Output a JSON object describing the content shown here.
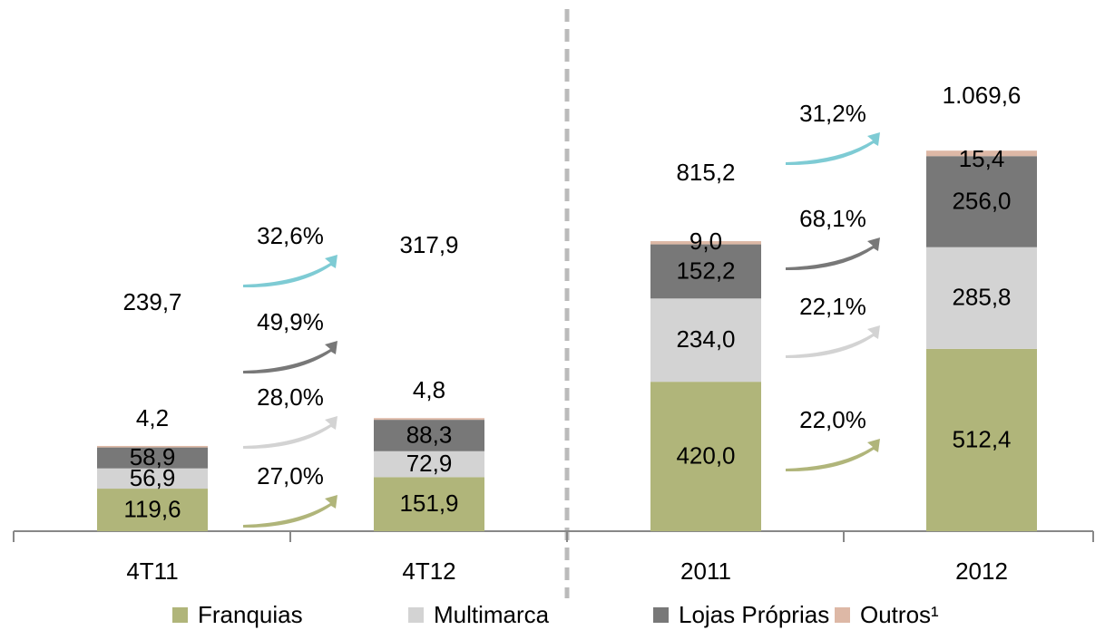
{
  "chart_data": {
    "type": "stacked_bar",
    "categories": [
      "4T11",
      "4T12",
      "2011",
      "2012"
    ],
    "series": [
      {
        "name": "Franquias",
        "color": "#b0b57a",
        "values": [
          119.6,
          151.9,
          420.0,
          512.4
        ],
        "value_labels": [
          "119,6",
          "151,9",
          "420,0",
          "512,4"
        ]
      },
      {
        "name": "Multimarca",
        "color": "#d3d3d3",
        "values": [
          56.9,
          72.9,
          234.0,
          285.8
        ],
        "value_labels": [
          "56,9",
          "72,9",
          "234,0",
          "285,8"
        ]
      },
      {
        "name": "Lojas Próprias",
        "color": "#787878",
        "values": [
          58.9,
          88.3,
          152.2,
          256.0
        ],
        "value_labels": [
          "58,9",
          "88,3",
          "152,2",
          "256,0"
        ]
      },
      {
        "name": "Outros¹",
        "color": "#ddb8a6",
        "values": [
          4.2,
          4.8,
          9.0,
          15.4
        ],
        "value_labels": [
          "4,2",
          "4,8",
          "9,0",
          "15,4"
        ]
      }
    ],
    "totals": [
      239.7,
      317.9,
      815.2,
      1069.6
    ],
    "total_labels": [
      "239,7",
      "317,9",
      "815,2",
      "1.069,6"
    ],
    "growth": [
      {
        "values": [
          27.0,
          28.0,
          49.9,
          32.6
        ],
        "value_labels": [
          "27,0%",
          "28,0%",
          "49,9%",
          "32,6%"
        ]
      },
      {
        "values": [
          22.0,
          22.1,
          68.1,
          31.2
        ],
        "value_labels": [
          "22,0%",
          "22,1%",
          "68,1%",
          "31,2%"
        ]
      }
    ],
    "total_color": "#7ecbd4",
    "ylim": [
      0,
      1200
    ]
  }
}
